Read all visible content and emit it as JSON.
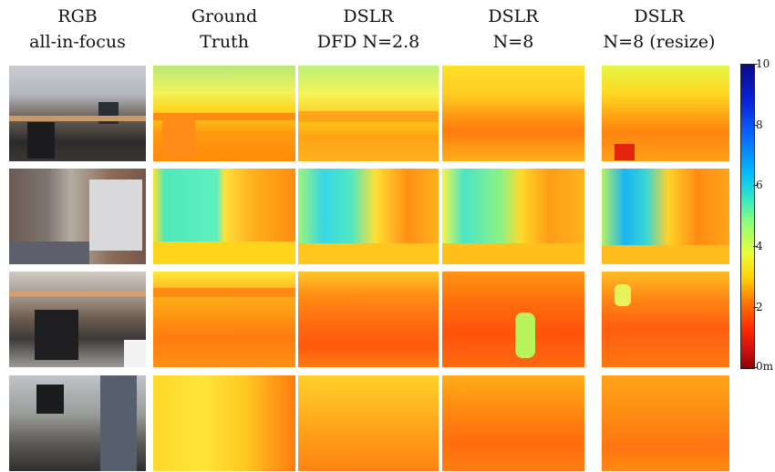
{
  "columns": [
    {
      "line1": "RGB",
      "line2": "all-in-focus"
    },
    {
      "line1": "Ground",
      "line2": "Truth"
    },
    {
      "line1": "DSLR",
      "line2": "DFD N=2.8"
    },
    {
      "line1": "DSLR",
      "line2": "N=8"
    },
    {
      "line1": "DSLR",
      "line2": "N=8 (resize)"
    }
  ],
  "colorbar": {
    "ticks": [
      {
        "value": 10,
        "label": "10"
      },
      {
        "value": 8,
        "label": "8"
      },
      {
        "value": 6,
        "label": "6"
      },
      {
        "value": 4,
        "label": "4"
      },
      {
        "value": 2,
        "label": "2"
      },
      {
        "value": 0,
        "label": "0m"
      }
    ],
    "min": 0,
    "max": 10
  },
  "rows": [
    {
      "index": 1
    },
    {
      "index": 2
    },
    {
      "index": 3
    },
    {
      "index": 4
    }
  ]
}
